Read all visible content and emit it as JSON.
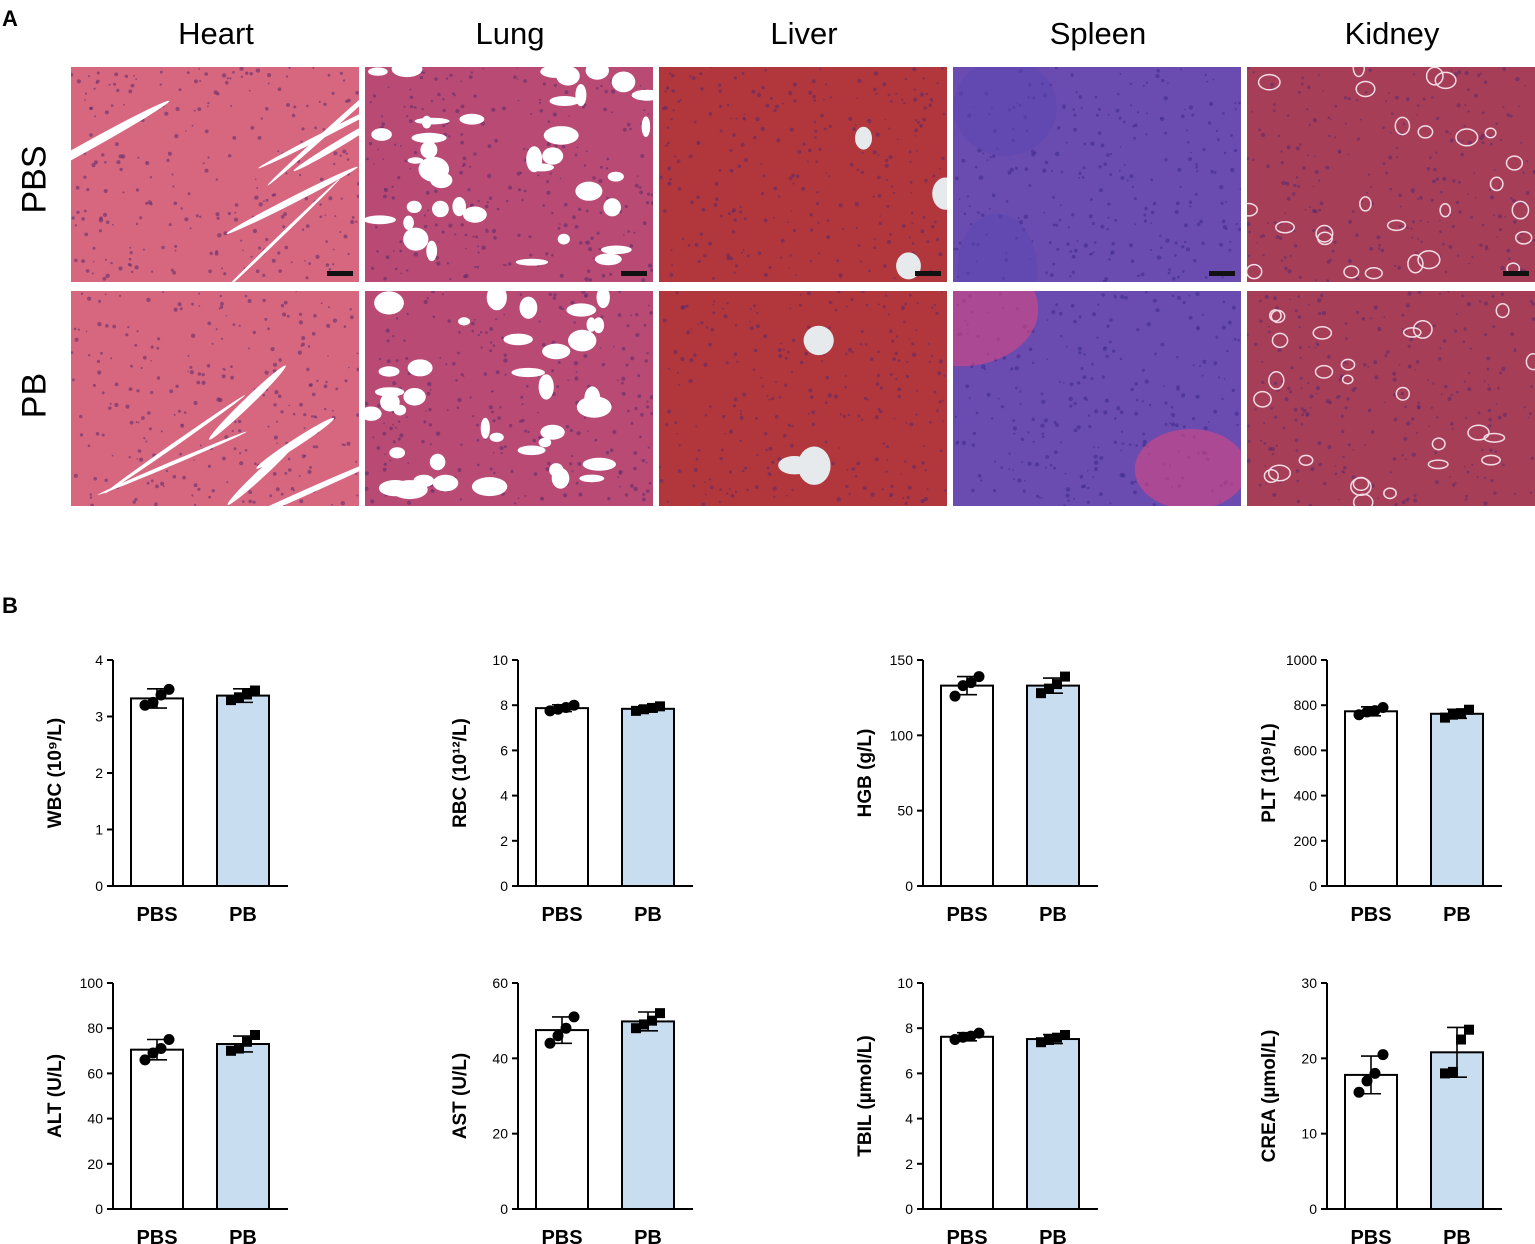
{
  "panel_a": {
    "letter": "A",
    "organs": [
      "Heart",
      "Lung",
      "Liver",
      "Spleen",
      "Kidney"
    ],
    "rows": [
      "PBS",
      "PB"
    ],
    "tissue_colors": {
      "Heart": "#d7667f",
      "Lung": "#b84a74",
      "Liver": "#b2373c",
      "Spleen": "#6a4bb0",
      "Kidney": "#a73e58"
    }
  },
  "panel_b": {
    "letter": "B"
  },
  "colors": {
    "pbs_bar": "#ffffff",
    "pb_bar": "#c9ddf1",
    "ink": "#000000"
  },
  "chart_data": [
    {
      "type": "bar",
      "ylabel": "WBC (10⁹/L)",
      "categories": [
        "PBS",
        "PB"
      ],
      "values": [
        3.32,
        3.37
      ],
      "errors": [
        0.17,
        0.12
      ],
      "ylim": [
        0,
        4
      ],
      "yticks": [
        0,
        1,
        2,
        3,
        4
      ],
      "points": [
        [
          3.2,
          3.25,
          3.38,
          3.48
        ],
        [
          3.29,
          3.34,
          3.39,
          3.46
        ]
      ]
    },
    {
      "type": "bar",
      "ylabel": "RBC (10¹²/L)",
      "categories": [
        "PBS",
        "PB"
      ],
      "values": [
        7.87,
        7.84
      ],
      "errors": [
        0.15,
        0.14
      ],
      "ylim": [
        0,
        10
      ],
      "yticks": [
        0,
        2,
        4,
        6,
        8,
        10
      ],
      "points": [
        [
          7.75,
          7.82,
          7.9,
          8.0
        ],
        [
          7.75,
          7.82,
          7.88,
          7.95
        ]
      ]
    },
    {
      "type": "bar",
      "ylabel": "HGB (g/L)",
      "categories": [
        "PBS",
        "PB"
      ],
      "values": [
        133,
        133
      ],
      "errors": [
        6,
        5
      ],
      "ylim": [
        0,
        150
      ],
      "yticks": [
        0,
        50,
        100,
        150
      ],
      "points": [
        [
          126,
          133,
          135,
          139
        ],
        [
          128,
          131,
          134,
          139
        ]
      ]
    },
    {
      "type": "bar",
      "ylabel": "PLT (10⁹/L)",
      "categories": [
        "PBS",
        "PB"
      ],
      "values": [
        773,
        762
      ],
      "errors": [
        20,
        20
      ],
      "ylim": [
        0,
        1000
      ],
      "yticks": [
        0,
        200,
        400,
        600,
        800,
        1000
      ],
      "points": [
        [
          758,
          770,
          776,
          790
        ],
        [
          745,
          758,
          765,
          780
        ]
      ]
    },
    {
      "type": "bar",
      "ylabel": "ALT (U/L)",
      "categories": [
        "PBS",
        "PB"
      ],
      "values": [
        70.5,
        73
      ],
      "errors": [
        4.5,
        3.5
      ],
      "ylim": [
        0,
        100
      ],
      "yticks": [
        0,
        20,
        40,
        60,
        80,
        100
      ],
      "points": [
        [
          66,
          69,
          71,
          75
        ],
        [
          70,
          71,
          74,
          77
        ]
      ]
    },
    {
      "type": "bar",
      "ylabel": "AST (U/L)",
      "categories": [
        "PBS",
        "PB"
      ],
      "values": [
        47.5,
        49.8
      ],
      "errors": [
        3.5,
        2.5
      ],
      "ylim": [
        0,
        60
      ],
      "yticks": [
        0,
        20,
        40,
        60
      ],
      "points": [
        [
          44,
          46,
          48,
          51
        ],
        [
          48,
          49,
          50,
          52
        ]
      ]
    },
    {
      "type": "bar",
      "ylabel": "TBIL (µmol/L)",
      "categories": [
        "PBS",
        "PB"
      ],
      "values": [
        7.62,
        7.52
      ],
      "errors": [
        0.18,
        0.2
      ],
      "ylim": [
        0,
        10
      ],
      "yticks": [
        0,
        2,
        4,
        6,
        8,
        10
      ],
      "points": [
        [
          7.5,
          7.6,
          7.65,
          7.78
        ],
        [
          7.38,
          7.48,
          7.58,
          7.7
        ]
      ]
    },
    {
      "type": "bar",
      "ylabel": "CREA (µmol/L)",
      "categories": [
        "PBS",
        "PB"
      ],
      "values": [
        17.8,
        20.8
      ],
      "errors": [
        2.5,
        3.3
      ],
      "ylim": [
        0,
        30
      ],
      "yticks": [
        0,
        10,
        20,
        30
      ],
      "points": [
        [
          15.5,
          17,
          18,
          20.5
        ],
        [
          18,
          18.2,
          22.5,
          23.8
        ]
      ]
    }
  ]
}
